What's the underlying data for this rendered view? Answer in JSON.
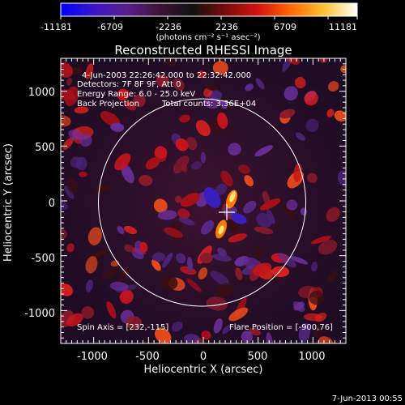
{
  "colorbar": {
    "tick_labels": [
      "-11181",
      "-6709",
      "-2236",
      "2236",
      "6709",
      "11181"
    ],
    "units_label": "(photons cm⁻² s⁻¹ asec⁻²)",
    "colors": [
      "#0000ff",
      "#3a16c9",
      "#5a1e8a",
      "#3d1438",
      "#111111",
      "#7a0c0c",
      "#d61212",
      "#ff6a00",
      "#ffc233",
      "#ffffff"
    ]
  },
  "plot": {
    "title": "Reconstructed RHESSI Image",
    "xlabel": "Heliocentric X (arcsec)",
    "ylabel": "Heliocentric Y (arcsec)",
    "xticks": [
      "-1000",
      "-500",
      "0",
      "500",
      "1000"
    ],
    "yticks": [
      "1000",
      "500",
      "0",
      "-500",
      "-1000"
    ],
    "xlim": [
      -1300,
      1300
    ],
    "ylim": [
      -1300,
      1300
    ],
    "annotations": {
      "time_range": "4-Jun-2003 22:26:42.000 to 22:32:42.000",
      "detectors": "Detectors: 7F 8F 9F, Att 0",
      "energy_range": "Energy Range: 6.0 - 25.0 keV",
      "method": "Back Projection",
      "total_counts": "Total counts: 3.36E+04",
      "spin_axis": "Spin Axis = [232,-115]",
      "flare_position": "Flare Position = [-900,76]"
    }
  },
  "footer": {
    "timestamp": "7-Jun-2013 00:55"
  }
}
